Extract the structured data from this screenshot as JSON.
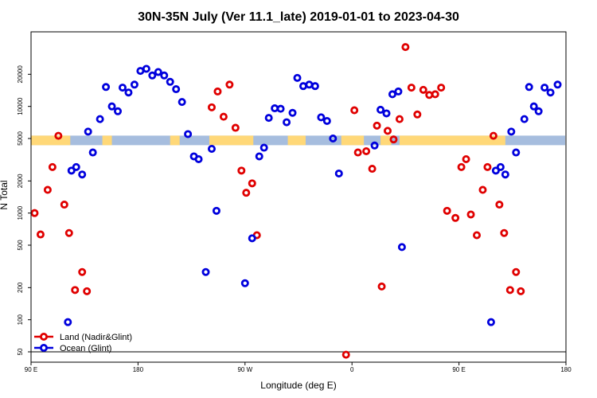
{
  "chart_data": {
    "type": "scatter",
    "title": "30N-35N July (Ver 11.1_late)   2019-01-01 to 2023-04-30",
    "xlabel": "Longitude (deg E)",
    "ylabel": "N Total",
    "xscale": "linear",
    "yscale": "log",
    "xlim": [
      90,
      540
    ],
    "ylim": [
      40,
      50000
    ],
    "x_ticks": [
      {
        "value": 90,
        "label": "90 E"
      },
      {
        "value": 180,
        "label": "180"
      },
      {
        "value": 270,
        "label": "90 W"
      },
      {
        "value": 360,
        "label": "0"
      },
      {
        "value": 450,
        "label": "90 E"
      },
      {
        "value": 540,
        "label": "180"
      }
    ],
    "y_ticks": [
      {
        "value": 50,
        "label": "50"
      },
      {
        "value": 100,
        "label": "100"
      },
      {
        "value": 200,
        "label": "200"
      },
      {
        "value": 500,
        "label": "500"
      },
      {
        "value": 1000,
        "label": "1000"
      },
      {
        "value": 2000,
        "label": "2000"
      },
      {
        "value": 5000,
        "label": "5000"
      },
      {
        "value": 10000,
        "label": "10000"
      },
      {
        "value": 20000,
        "label": "20000"
      }
    ],
    "reference_line_y": 50,
    "surface_band": {
      "y_center": 4800,
      "land_color": "#FFD878",
      "ocean_color": "#A6BDDE",
      "land_ranges": [
        [
          90,
          123
        ],
        [
          150,
          158
        ],
        [
          207,
          215
        ],
        [
          240,
          277
        ],
        [
          306,
          321
        ],
        [
          351,
          370
        ],
        [
          384,
          393
        ],
        [
          400,
          489
        ]
      ]
    },
    "legend": {
      "position": "bottom-left",
      "entries": [
        {
          "label": "Land (Nadir&Glint)",
          "color": "#E00000"
        },
        {
          "label": "Ocean (Glint)",
          "color": "#0000DD"
        }
      ]
    },
    "series": [
      {
        "name": "Land (Nadir&Glint)",
        "color": "#E00000",
        "points": [
          {
            "x": 93,
            "y": 1000
          },
          {
            "x": 98,
            "y": 630
          },
          {
            "x": 104,
            "y": 1650
          },
          {
            "x": 108,
            "y": 2700
          },
          {
            "x": 113,
            "y": 5300
          },
          {
            "x": 118,
            "y": 1200
          },
          {
            "x": 122,
            "y": 650
          },
          {
            "x": 127,
            "y": 190
          },
          {
            "x": 133,
            "y": 280
          },
          {
            "x": 137,
            "y": 185
          },
          {
            "x": 242,
            "y": 9800
          },
          {
            "x": 247,
            "y": 13800
          },
          {
            "x": 252,
            "y": 8000
          },
          {
            "x": 257,
            "y": 16000
          },
          {
            "x": 262,
            "y": 6300
          },
          {
            "x": 267,
            "y": 2500
          },
          {
            "x": 271,
            "y": 1550
          },
          {
            "x": 276,
            "y": 1900
          },
          {
            "x": 280,
            "y": 620
          },
          {
            "x": 355,
            "y": 47
          },
          {
            "x": 362,
            "y": 9200
          },
          {
            "x": 365,
            "y": 3700
          },
          {
            "x": 372,
            "y": 3800
          },
          {
            "x": 377,
            "y": 2600
          },
          {
            "x": 381,
            "y": 6600
          },
          {
            "x": 385,
            "y": 205
          },
          {
            "x": 390,
            "y": 5900
          },
          {
            "x": 395,
            "y": 4900
          },
          {
            "x": 400,
            "y": 7600
          },
          {
            "x": 405,
            "y": 36000
          },
          {
            "x": 410,
            "y": 15000
          },
          {
            "x": 415,
            "y": 8400
          },
          {
            "x": 420,
            "y": 14300
          },
          {
            "x": 425,
            "y": 12800
          },
          {
            "x": 430,
            "y": 13000
          },
          {
            "x": 435,
            "y": 15000
          },
          {
            "x": 440,
            "y": 1050
          },
          {
            "x": 447,
            "y": 900
          },
          {
            "x": 452,
            "y": 2700
          },
          {
            "x": 456,
            "y": 3200
          },
          {
            "x": 460,
            "y": 970
          },
          {
            "x": 465,
            "y": 620
          },
          {
            "x": 470,
            "y": 1650
          },
          {
            "x": 474,
            "y": 2700
          },
          {
            "x": 479,
            "y": 5300
          },
          {
            "x": 484,
            "y": 1200
          },
          {
            "x": 488,
            "y": 650
          },
          {
            "x": 493,
            "y": 190
          },
          {
            "x": 498,
            "y": 280
          },
          {
            "x": 502,
            "y": 185
          }
        ]
      },
      {
        "name": "Ocean (Glint)",
        "color": "#0000DD",
        "points": [
          {
            "x": 121,
            "y": 95
          },
          {
            "x": 124,
            "y": 2500
          },
          {
            "x": 128,
            "y": 2700
          },
          {
            "x": 133,
            "y": 2300
          },
          {
            "x": 138,
            "y": 5800
          },
          {
            "x": 142,
            "y": 3700
          },
          {
            "x": 148,
            "y": 7600
          },
          {
            "x": 153,
            "y": 15200
          },
          {
            "x": 158,
            "y": 10000
          },
          {
            "x": 163,
            "y": 9000
          },
          {
            "x": 167,
            "y": 15000
          },
          {
            "x": 172,
            "y": 13500
          },
          {
            "x": 177,
            "y": 16000
          },
          {
            "x": 182,
            "y": 21500
          },
          {
            "x": 187,
            "y": 22500
          },
          {
            "x": 192,
            "y": 19500
          },
          {
            "x": 197,
            "y": 21000
          },
          {
            "x": 202,
            "y": 19500
          },
          {
            "x": 207,
            "y": 17000
          },
          {
            "x": 212,
            "y": 14500
          },
          {
            "x": 217,
            "y": 11000
          },
          {
            "x": 222,
            "y": 5500
          },
          {
            "x": 227,
            "y": 3400
          },
          {
            "x": 231,
            "y": 3200
          },
          {
            "x": 237,
            "y": 280
          },
          {
            "x": 242,
            "y": 4000
          },
          {
            "x": 246,
            "y": 1050
          },
          {
            "x": 270,
            "y": 220
          },
          {
            "x": 276,
            "y": 580
          },
          {
            "x": 282,
            "y": 3400
          },
          {
            "x": 286,
            "y": 4100
          },
          {
            "x": 290,
            "y": 7800
          },
          {
            "x": 295,
            "y": 9600
          },
          {
            "x": 300,
            "y": 9500
          },
          {
            "x": 305,
            "y": 7100
          },
          {
            "x": 310,
            "y": 8700
          },
          {
            "x": 314,
            "y": 18500
          },
          {
            "x": 319,
            "y": 15500
          },
          {
            "x": 324,
            "y": 16000
          },
          {
            "x": 329,
            "y": 15500
          },
          {
            "x": 334,
            "y": 7900
          },
          {
            "x": 339,
            "y": 7300
          },
          {
            "x": 344,
            "y": 5000
          },
          {
            "x": 349,
            "y": 2350
          },
          {
            "x": 379,
            "y": 4300
          },
          {
            "x": 384,
            "y": 9300
          },
          {
            "x": 389,
            "y": 8600
          },
          {
            "x": 394,
            "y": 13000
          },
          {
            "x": 399,
            "y": 13800
          },
          {
            "x": 402,
            "y": 480
          },
          {
            "x": 477,
            "y": 95
          },
          {
            "x": 481,
            "y": 2500
          },
          {
            "x": 485,
            "y": 2700
          },
          {
            "x": 489,
            "y": 2300
          },
          {
            "x": 494,
            "y": 5800
          },
          {
            "x": 498,
            "y": 3700
          },
          {
            "x": 505,
            "y": 7600
          },
          {
            "x": 509,
            "y": 15200
          },
          {
            "x": 513,
            "y": 10000
          },
          {
            "x": 517,
            "y": 9000
          },
          {
            "x": 522,
            "y": 15000
          },
          {
            "x": 527,
            "y": 13500
          },
          {
            "x": 533,
            "y": 16000
          }
        ]
      }
    ]
  }
}
